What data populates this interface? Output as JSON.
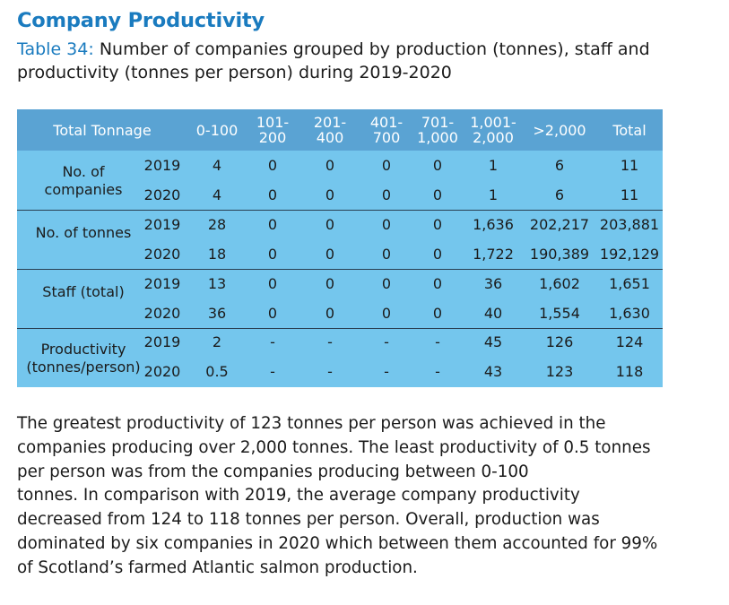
{
  "heading": "Company Productivity",
  "caption": {
    "label": "Table 34:",
    "text": "Number of companies grouped by production (tonnes), staff and productivity (tonnes per person) during 2019-2020"
  },
  "table": {
    "header_label": "Total Tonnage",
    "columns": [
      [
        "0-100"
      ],
      [
        "101-",
        "200"
      ],
      [
        "201-",
        "400"
      ],
      [
        "401-",
        "700"
      ],
      [
        "701-",
        "1,000"
      ],
      [
        "1,001-",
        "2,000"
      ],
      [
        ">2,000"
      ],
      [
        "Total"
      ]
    ],
    "groups": [
      {
        "label": [
          "No. of",
          "companies"
        ],
        "rows": [
          {
            "year": "2019",
            "values": [
              "4",
              "0",
              "0",
              "0",
              "0",
              "1",
              "6",
              "11"
            ]
          },
          {
            "year": "2020",
            "values": [
              "4",
              "0",
              "0",
              "0",
              "0",
              "1",
              "6",
              "11"
            ]
          }
        ]
      },
      {
        "label": [
          "No. of tonnes"
        ],
        "rows": [
          {
            "year": "2019",
            "values": [
              "28",
              "0",
              "0",
              "0",
              "0",
              "1,636",
              "202,217",
              "203,881"
            ]
          },
          {
            "year": "2020",
            "values": [
              "18",
              "0",
              "0",
              "0",
              "0",
              "1,722",
              "190,389",
              "192,129"
            ]
          }
        ]
      },
      {
        "label": [
          "Staff (total)"
        ],
        "rows": [
          {
            "year": "2019",
            "values": [
              "13",
              "0",
              "0",
              "0",
              "0",
              "36",
              "1,602",
              "1,651"
            ]
          },
          {
            "year": "2020",
            "values": [
              "36",
              "0",
              "0",
              "0",
              "0",
              "40",
              "1,554",
              "1,630"
            ]
          }
        ]
      },
      {
        "label": [
          "Productivity",
          "(tonnes/person)"
        ],
        "rows": [
          {
            "year": "2019",
            "values": [
              "2",
              "-",
              "-",
              "-",
              "-",
              "45",
              "126",
              "124"
            ]
          },
          {
            "year": "2020",
            "values": [
              "0.5",
              "-",
              "-",
              "-",
              "-",
              "43",
              "123",
              "118"
            ]
          }
        ]
      }
    ]
  },
  "paragraph": [
    "The greatest productivity of 123 tonnes per person was achieved in the",
    "companies producing over 2,000 tonnes. The least productivity of 0.5 tonnes",
    "per person was from the companies producing between 0-100",
    "tonnes. In comparison with 2019, the average company productivity",
    "decreased from 124 to 118 tonnes per person. Overall, production was",
    "dominated by six companies in 2020 which between them accounted for 99%",
    "of Scotland’s farmed Atlantic salmon production."
  ]
}
